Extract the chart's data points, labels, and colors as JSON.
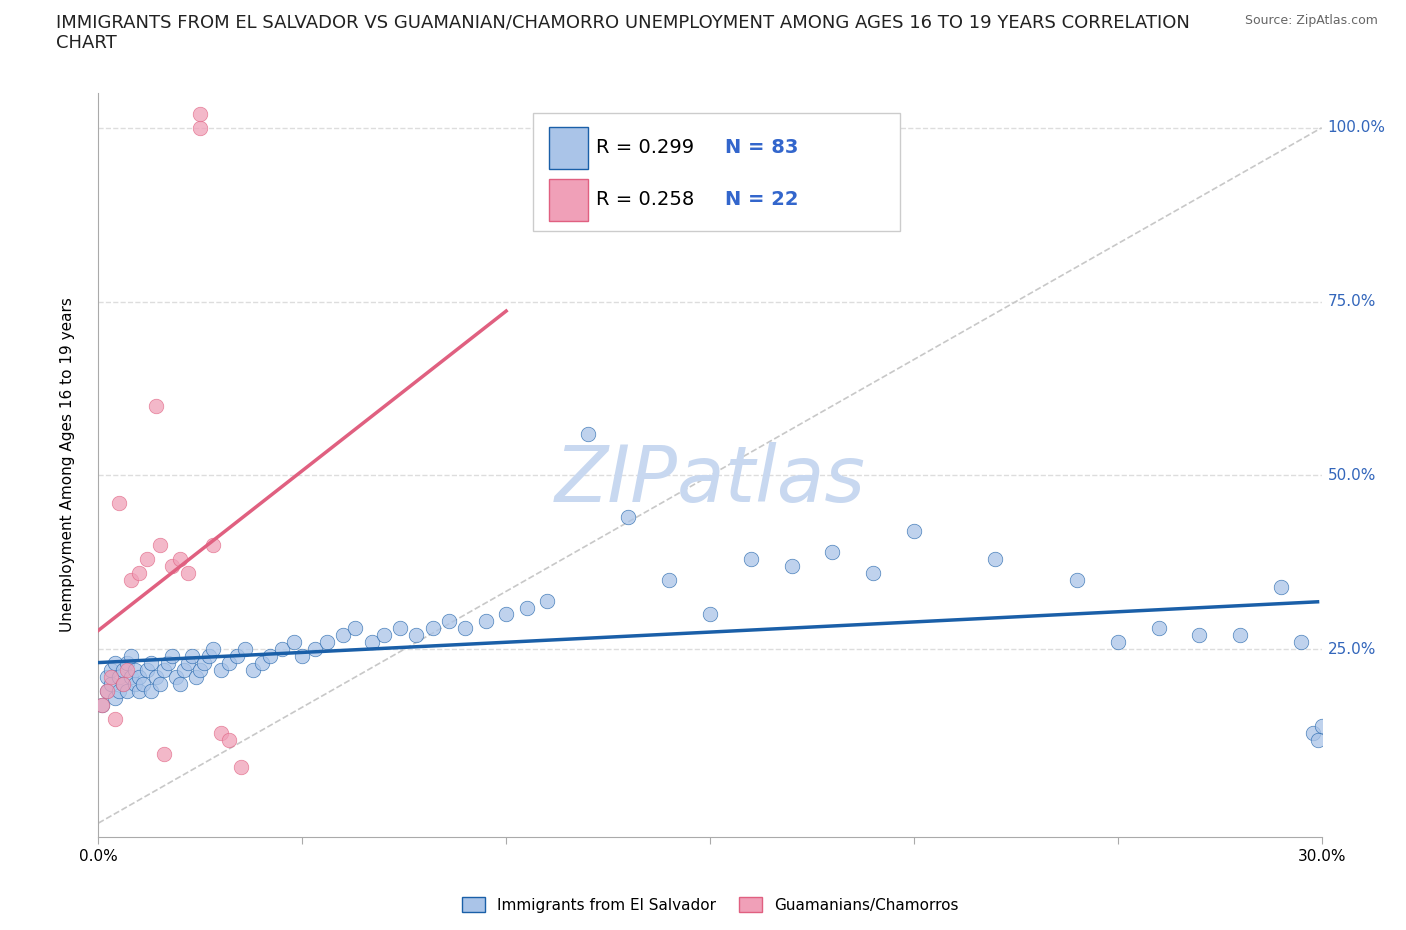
{
  "title_line1": "IMMIGRANTS FROM EL SALVADOR VS GUAMANIAN/CHAMORRO UNEMPLOYMENT AMONG AGES 16 TO 19 YEARS CORRELATION",
  "title_line2": "CHART",
  "source": "Source: ZipAtlas.com",
  "ylabel": "Unemployment Among Ages 16 to 19 years",
  "xlim": [
    0.0,
    0.3
  ],
  "ylim": [
    -0.02,
    1.05
  ],
  "ytick_positions": [
    0.0,
    0.25,
    0.5,
    0.75,
    1.0
  ],
  "yticklabels": [
    "",
    "25.0%",
    "50.0%",
    "75.0%",
    "100.0%"
  ],
  "scatter_color_blue": "#aac4e8",
  "scatter_color_pink": "#f0a0b8",
  "trendline_color_blue": "#1a5fa8",
  "trendline_color_pink": "#e06080",
  "refline_color": "#c8c8c8",
  "grid_color": "#dddddd",
  "background_color": "#ffffff",
  "watermark": "ZIPatlas",
  "watermark_color": "#c8d8f0",
  "title_fontsize": 13,
  "axis_label_fontsize": 11,
  "tick_fontsize": 11,
  "legend_fontsize": 14,
  "blue_R": 0.299,
  "blue_N": 83,
  "pink_R": 0.258,
  "pink_N": 22,
  "blue_scatter_x": [
    0.001,
    0.002,
    0.002,
    0.003,
    0.003,
    0.004,
    0.004,
    0.005,
    0.005,
    0.006,
    0.006,
    0.007,
    0.007,
    0.008,
    0.008,
    0.009,
    0.009,
    0.01,
    0.01,
    0.011,
    0.012,
    0.013,
    0.013,
    0.014,
    0.015,
    0.016,
    0.017,
    0.018,
    0.019,
    0.02,
    0.021,
    0.022,
    0.023,
    0.024,
    0.025,
    0.026,
    0.027,
    0.028,
    0.03,
    0.032,
    0.034,
    0.036,
    0.038,
    0.04,
    0.042,
    0.045,
    0.048,
    0.05,
    0.053,
    0.056,
    0.06,
    0.063,
    0.067,
    0.07,
    0.074,
    0.078,
    0.082,
    0.086,
    0.09,
    0.095,
    0.1,
    0.105,
    0.11,
    0.12,
    0.13,
    0.14,
    0.15,
    0.16,
    0.17,
    0.18,
    0.19,
    0.2,
    0.22,
    0.24,
    0.25,
    0.26,
    0.27,
    0.28,
    0.29,
    0.295,
    0.298,
    0.299,
    0.3
  ],
  "blue_scatter_y": [
    0.17,
    0.19,
    0.21,
    0.2,
    0.22,
    0.18,
    0.23,
    0.19,
    0.21,
    0.2,
    0.22,
    0.19,
    0.23,
    0.21,
    0.24,
    0.2,
    0.22,
    0.19,
    0.21,
    0.2,
    0.22,
    0.23,
    0.19,
    0.21,
    0.2,
    0.22,
    0.23,
    0.24,
    0.21,
    0.2,
    0.22,
    0.23,
    0.24,
    0.21,
    0.22,
    0.23,
    0.24,
    0.25,
    0.22,
    0.23,
    0.24,
    0.25,
    0.22,
    0.23,
    0.24,
    0.25,
    0.26,
    0.24,
    0.25,
    0.26,
    0.27,
    0.28,
    0.26,
    0.27,
    0.28,
    0.27,
    0.28,
    0.29,
    0.28,
    0.29,
    0.3,
    0.31,
    0.32,
    0.56,
    0.44,
    0.35,
    0.3,
    0.38,
    0.37,
    0.39,
    0.36,
    0.42,
    0.38,
    0.35,
    0.26,
    0.28,
    0.27,
    0.27,
    0.34,
    0.26,
    0.13,
    0.12,
    0.14
  ],
  "pink_scatter_x": [
    0.001,
    0.002,
    0.003,
    0.004,
    0.005,
    0.006,
    0.007,
    0.008,
    0.01,
    0.012,
    0.015,
    0.018,
    0.02,
    0.022,
    0.025,
    0.025,
    0.028,
    0.03,
    0.032,
    0.035,
    0.014,
    0.016
  ],
  "pink_scatter_y": [
    0.17,
    0.19,
    0.21,
    0.15,
    0.46,
    0.2,
    0.22,
    0.35,
    0.36,
    0.38,
    0.4,
    0.37,
    0.38,
    0.36,
    1.0,
    1.02,
    0.4,
    0.13,
    0.12,
    0.08,
    0.6,
    0.1
  ]
}
